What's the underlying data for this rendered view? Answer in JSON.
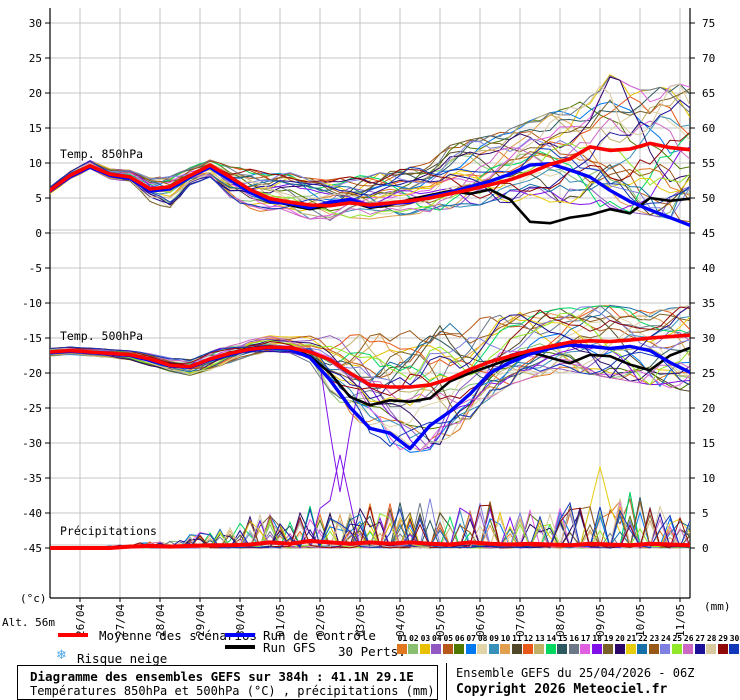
{
  "axes": {
    "left_unit": "(°c)",
    "right_unit": "(mm)",
    "left_ticks": [
      30,
      25,
      20,
      15,
      10,
      5,
      0,
      -5,
      -10,
      -15,
      -20,
      -25,
      -30,
      -35,
      -40,
      -45
    ],
    "right_ticks": [
      75,
      70,
      65,
      60,
      55,
      50,
      45,
      40,
      35,
      30,
      25,
      20,
      15,
      10,
      5,
      0
    ],
    "x_labels": [
      "26/04",
      "27/04",
      "28/04",
      "29/04",
      "30/04",
      "01/05",
      "02/05",
      "03/05",
      "04/05",
      "05/05",
      "06/05",
      "07/05",
      "08/05",
      "09/05",
      "10/05",
      "11/05"
    ],
    "alt_label": "Alt. 56m"
  },
  "panel_labels": {
    "t850": "Temp. 850hPa",
    "t500": "Temp. 500hPa",
    "precip": "Précipitations"
  },
  "legend": {
    "mean_label": "Moyenne des scénarios",
    "mean_color": "#ff0000",
    "control_label": "Run de contrôle",
    "control_color": "#0000ff",
    "gfs_label": "Run GFS",
    "gfs_color": "#000000",
    "perts_label": "30 Perts.",
    "snow_icon": "❄",
    "snow_label": "Risque neige",
    "members": [
      {
        "id": "01",
        "color": "#e07820"
      },
      {
        "id": "02",
        "color": "#88c070"
      },
      {
        "id": "03",
        "color": "#e8c000"
      },
      {
        "id": "04",
        "color": "#9058c0"
      },
      {
        "id": "05",
        "color": "#b85818"
      },
      {
        "id": "06",
        "color": "#507800"
      },
      {
        "id": "07",
        "color": "#0078f0"
      },
      {
        "id": "08",
        "color": "#e0d4a8"
      },
      {
        "id": "09",
        "color": "#3890b8"
      },
      {
        "id": "10",
        "color": "#e0a050"
      },
      {
        "id": "11",
        "color": "#504828"
      },
      {
        "id": "12",
        "color": "#e85818"
      },
      {
        "id": "13",
        "color": "#c0b068"
      },
      {
        "id": "14",
        "color": "#00d860"
      },
      {
        "id": "15",
        "color": "#2c5860"
      },
      {
        "id": "16",
        "color": "#6c7888"
      },
      {
        "id": "17",
        "color": "#e060e0"
      },
      {
        "id": "18",
        "color": "#8010e8"
      },
      {
        "id": "19",
        "color": "#786028"
      },
      {
        "id": "20",
        "color": "#2c0868"
      },
      {
        "id": "21",
        "color": "#e8cc10"
      },
      {
        "id": "22",
        "color": "#1870a8"
      },
      {
        "id": "23",
        "color": "#985818"
      },
      {
        "id": "24",
        "color": "#8080e0"
      },
      {
        "id": "25",
        "color": "#90e828"
      },
      {
        "id": "26",
        "color": "#cc68c4"
      },
      {
        "id": "27",
        "color": "#1c1098"
      },
      {
        "id": "28",
        "color": "#d8c8a0"
      },
      {
        "id": "29",
        "color": "#900808"
      },
      {
        "id": "30",
        "color": "#1038b8"
      }
    ]
  },
  "footer": {
    "box_title": "Diagramme des ensembles GEFS sur 384h : 41.1N 29.1E",
    "box_subtitle": "Températures 850hPa et 500hPa (°C) , précipitations (mm)",
    "run_info": "Ensemble GEFS du 25/04/2026 - 06Z",
    "copyright": "Copyright 2026 Meteociel.fr"
  },
  "chart_data": {
    "type": "line",
    "title": "Diagramme des ensembles GEFS sur 384h : 41.1N 29.1E",
    "x_axis": {
      "start": "25/04 06Z",
      "end": "11/05 06Z",
      "hours": 384,
      "tick_labels": [
        "26/04",
        "27/04",
        "28/04",
        "29/04",
        "30/04",
        "01/05",
        "02/05",
        "03/05",
        "04/05",
        "05/05",
        "06/05",
        "07/05",
        "08/05",
        "09/05",
        "10/05",
        "11/05"
      ]
    },
    "ylim_left_celsius": [
      -45,
      30
    ],
    "ylim_right_mm": [
      0,
      75
    ],
    "grid": true,
    "t_days_step": 0.5,
    "t850": {
      "mean": [
        6.1,
        8.2,
        9.6,
        8.4,
        8.0,
        6.3,
        6.6,
        8.2,
        9.7,
        8.0,
        6.2,
        4.9,
        4.4,
        4.0,
        3.9,
        4.3,
        4.0,
        4.3,
        4.6,
        5.0,
        5.6,
        6.2,
        6.9,
        7.6,
        8.6,
        9.8,
        10.6,
        12.3,
        11.8,
        12.0,
        12.8,
        12.2,
        11.9
      ],
      "control": [
        6.0,
        8.0,
        9.4,
        8.2,
        7.8,
        6.0,
        6.3,
        8.0,
        9.4,
        7.6,
        5.8,
        4.5,
        4.2,
        3.6,
        4.4,
        4.8,
        3.8,
        4.2,
        4.4,
        5.2,
        5.8,
        6.6,
        7.4,
        8.4,
        9.7,
        9.9,
        9.0,
        8.0,
        6.1,
        4.5,
        3.3,
        2.2,
        1.1
      ],
      "gfs": [
        6.0,
        8.1,
        9.5,
        8.3,
        7.9,
        6.1,
        6.5,
        8.1,
        9.5,
        7.8,
        6.0,
        4.6,
        4.0,
        3.4,
        4.0,
        4.5,
        3.6,
        4.0,
        4.8,
        5.4,
        6.0,
        5.6,
        6.2,
        4.8,
        1.6,
        1.4,
        2.2,
        2.6,
        3.4,
        2.8,
        5.0,
        4.6,
        4.9
      ],
      "env_min": [
        5.6,
        7.6,
        9.0,
        7.6,
        7.0,
        4.2,
        3.4,
        6.8,
        7.6,
        5.0,
        3.2,
        2.6,
        2.2,
        1.8,
        1.6,
        2.0,
        1.8,
        2.2,
        2.4,
        2.8,
        3.2,
        3.6,
        3.8,
        4.0,
        4.2,
        4.0,
        3.8,
        3.4,
        3.0,
        2.4,
        2.0,
        1.4,
        1.0
      ],
      "env_max": [
        6.6,
        8.8,
        10.4,
        9.2,
        9.0,
        8.0,
        8.2,
        9.4,
        10.6,
        9.6,
        9.4,
        8.6,
        8.8,
        8.0,
        7.8,
        8.2,
        8.6,
        9.0,
        9.6,
        10.4,
        12.8,
        13.6,
        14.2,
        15.2,
        16.4,
        17.6,
        18.4,
        20.0,
        23.2,
        21.6,
        21.0,
        21.8,
        22.0
      ]
    },
    "t500": {
      "mean": [
        -17.0,
        -16.8,
        -17.0,
        -17.2,
        -17.4,
        -18.0,
        -18.9,
        -19.1,
        -18.0,
        -17.2,
        -16.6,
        -16.3,
        -16.4,
        -17.0,
        -18.1,
        -20.0,
        -21.7,
        -22.0,
        -22.0,
        -21.7,
        -20.8,
        -19.5,
        -18.4,
        -17.6,
        -16.8,
        -16.2,
        -15.6,
        -15.4,
        -15.5,
        -15.3,
        -15.0,
        -14.8,
        -14.6
      ],
      "control": [
        -17.1,
        -16.9,
        -17.1,
        -17.3,
        -17.5,
        -18.2,
        -19.0,
        -19.2,
        -18.1,
        -17.3,
        -16.7,
        -16.4,
        -16.6,
        -17.8,
        -21.0,
        -24.9,
        -27.9,
        -28.6,
        -30.8,
        -27.5,
        -25.5,
        -23.0,
        -20.0,
        -18.5,
        -17.3,
        -16.5,
        -16.0,
        -16.2,
        -16.5,
        -16.2,
        -16.8,
        -18.5,
        -19.9
      ],
      "gfs": [
        -17.0,
        -16.9,
        -17.0,
        -17.3,
        -17.4,
        -18.1,
        -18.8,
        -19.0,
        -18.0,
        -17.1,
        -16.5,
        -16.2,
        -16.5,
        -17.6,
        -20.0,
        -23.4,
        -24.6,
        -23.9,
        -24.1,
        -23.6,
        -21.2,
        -20.0,
        -19.0,
        -18.0,
        -17.0,
        -17.8,
        -18.6,
        -17.4,
        -17.6,
        -18.8,
        -19.6,
        -17.5,
        -16.4
      ],
      "env_min": [
        -17.6,
        -17.4,
        -17.6,
        -17.8,
        -18.2,
        -19.0,
        -19.8,
        -20.4,
        -19.6,
        -18.6,
        -17.6,
        -17.0,
        -17.2,
        -18.6,
        -23.0,
        -26.0,
        -29.0,
        -31.0,
        -32.0,
        -31.5,
        -30.0,
        -27.0,
        -24.0,
        -22.0,
        -21.0,
        -20.5,
        -20.0,
        -20.5,
        -21.0,
        -21.5,
        -22.0,
        -22.5,
        -23.0
      ],
      "env_max": [
        -16.4,
        -16.2,
        -16.4,
        -16.6,
        -16.8,
        -17.2,
        -17.8,
        -18.0,
        -16.8,
        -16.0,
        -15.2,
        -14.6,
        -14.8,
        -14.6,
        -14.4,
        -14.2,
        -14.0,
        -13.8,
        -13.4,
        -13.0,
        -12.4,
        -12.0,
        -11.6,
        -11.2,
        -10.8,
        -10.6,
        -10.4,
        -10.2,
        -10.0,
        -10.4,
        -10.8,
        -10.4,
        -10.0
      ]
    },
    "precip_mm": {
      "mean": [
        0,
        0,
        0,
        0,
        0.2,
        0.3,
        0.2,
        0.3,
        0.4,
        0.4,
        0.5,
        0.8,
        0.6,
        1.0,
        0.8,
        0.6,
        0.8,
        0.6,
        0.8,
        0.6,
        0.5,
        0.8,
        0.6,
        0.5,
        0.6,
        0.5,
        0.4,
        0.6,
        0.5,
        0.4,
        0.6,
        0.5,
        0.4
      ],
      "env_max": [
        0,
        0,
        0,
        0.3,
        0.5,
        1,
        1,
        2,
        2.5,
        3,
        4.5,
        5,
        4,
        6.5,
        5,
        5,
        6.5,
        7,
        6,
        7.5,
        5,
        7,
        7,
        5,
        6.5,
        5,
        7,
        6,
        6,
        8.6,
        7,
        5,
        4.5
      ]
    },
    "specials": [
      {
        "panel": "t500",
        "member_index": 17,
        "t_days": 7.25,
        "value": -37.0
      },
      {
        "panel": "precip",
        "member_index": 17,
        "t_days": 7.25,
        "value": 13.3
      },
      {
        "panel": "precip",
        "member_index": 20,
        "t_days": 13.75,
        "value": 11.6
      }
    ]
  }
}
